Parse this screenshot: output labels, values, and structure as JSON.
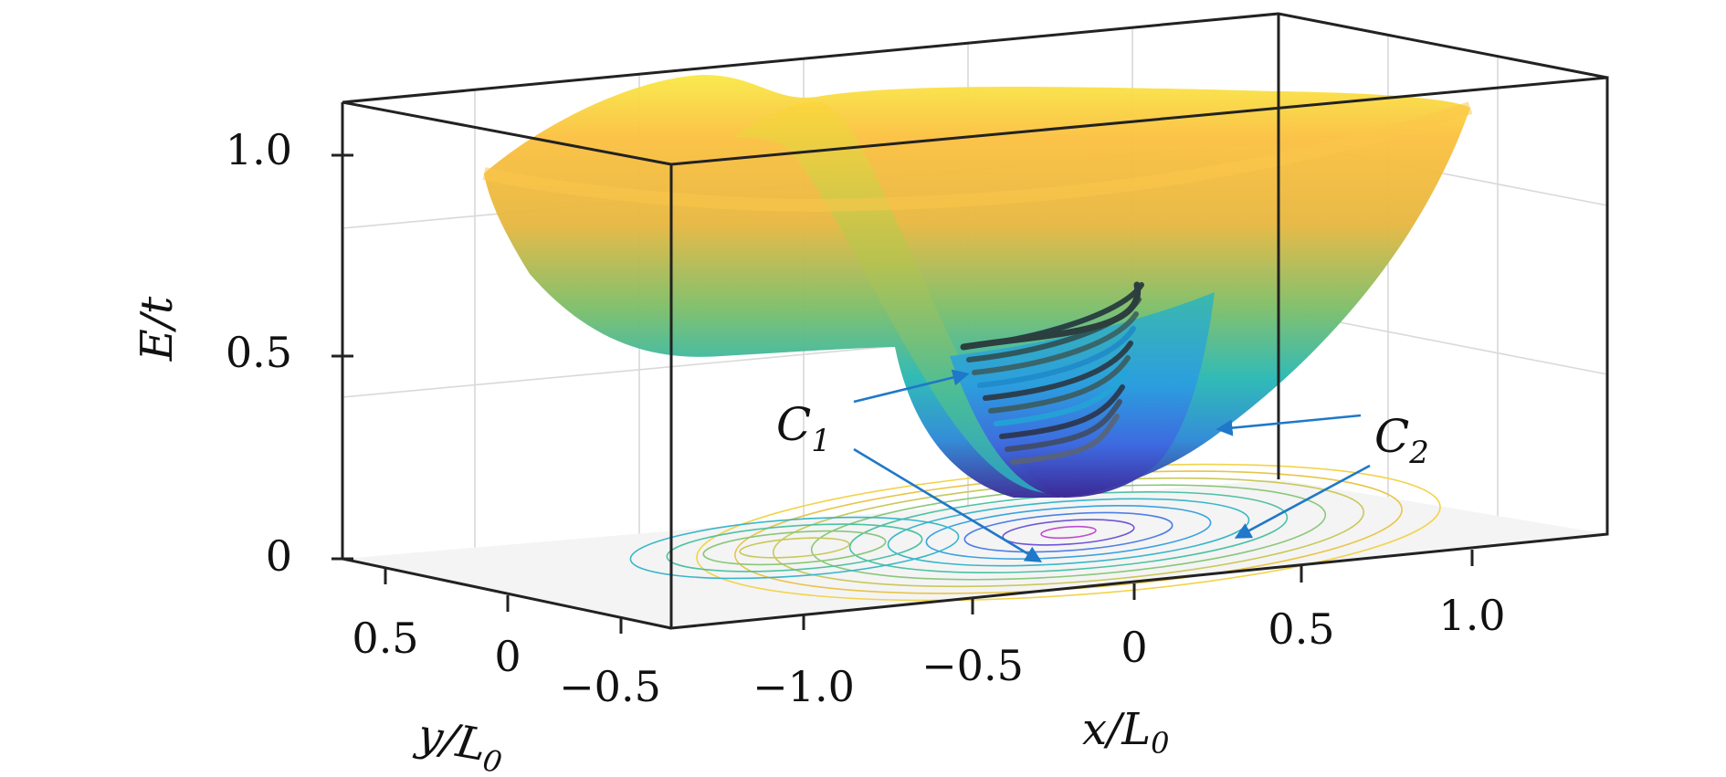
{
  "chart_data": {
    "type": "surface3d",
    "title": "",
    "xlabel": {
      "base": "x/L",
      "sub": "0"
    },
    "ylabel": {
      "base": "y/L",
      "sub": "0"
    },
    "zlabel": "E/t",
    "xlim": [
      -1.3,
      1.3
    ],
    "ylim": [
      -0.7,
      0.7
    ],
    "zlim": [
      0,
      1.1
    ],
    "x_ticks": [
      "−1.0",
      "−0.5",
      "0",
      "0.5",
      "1.0"
    ],
    "y_ticks": [
      "0.5",
      "0",
      "−0.5"
    ],
    "z_ticks": [
      "1.0",
      "0.5",
      "0"
    ],
    "grid": true,
    "colormap": "parula",
    "surface": {
      "description": "Energy landscape E(x,y) with minimum near x = 0, y = 0 and E rising to about 1.0 at the rim",
      "minimum": {
        "x": 0.0,
        "y": 0.0,
        "E": 0.15
      },
      "rim_E": 1.0
    },
    "contours": {
      "plane": "E = 0",
      "levels": 10
    },
    "annotations": [
      {
        "label": "C",
        "sub": "1"
      },
      {
        "label": "C",
        "sub": "2"
      }
    ]
  }
}
